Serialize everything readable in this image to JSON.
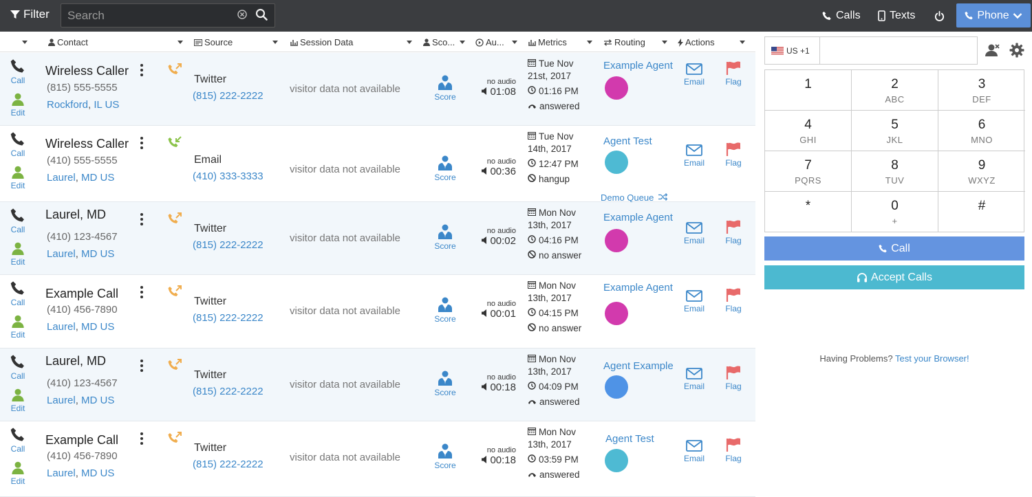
{
  "topbar": {
    "filter_label": "Filter",
    "search_placeholder": "Search",
    "calls_label": "Calls",
    "texts_label": "Texts",
    "phone_label": "Phone"
  },
  "columns": {
    "contact": "Contact",
    "source": "Source",
    "session": "Session Data",
    "score": "Sco...",
    "audio": "Au...",
    "metrics": "Metrics",
    "routing": "Routing",
    "actions": "Actions"
  },
  "labels": {
    "call": "Call",
    "edit": "Edit",
    "score": "Score",
    "no_audio": "no audio",
    "email": "Email",
    "flag": "Flag",
    "session_na": "visitor data not available"
  },
  "colors": {
    "topbar": "#3b3d40",
    "accent": "#5b8fd8",
    "link": "#3b87c9",
    "accept": "#4cb9d0"
  },
  "rows": [
    {
      "name": "Wireless Caller",
      "phone": "(815) 555-5555",
      "city": "Rockford",
      "region": "IL US",
      "call_dir": "incoming",
      "source": "Twitter",
      "source_number": "(815) 222-2222",
      "duration": "01:08",
      "date_line1": "Tue Nov",
      "date_line2": "21st, 2017",
      "time": "01:16 PM",
      "status": "answered",
      "status_icon": "phone-hangup-icon",
      "agent": "Example Agent",
      "agent_color": "#d23aad",
      "queue": ""
    },
    {
      "name": "Wireless Caller",
      "phone": "(410) 555-5555",
      "city": "Laurel",
      "region": "MD US",
      "call_dir": "outgoing",
      "source": "Email",
      "source_number": "(410) 333-3333",
      "duration": "00:36",
      "date_line1": "Tue Nov",
      "date_line2": "14th, 2017",
      "time": "12:47 PM",
      "status": "hangup",
      "status_icon": "ban-icon",
      "agent": "Agent Test",
      "agent_color": "#4ebad3",
      "queue": "Demo Queue"
    },
    {
      "name": "Laurel, MD",
      "phone": "(410) 123-4567",
      "city": "Laurel",
      "region": "MD US",
      "call_dir": "incoming",
      "source": "Twitter",
      "source_number": "(815) 222-2222",
      "duration": "00:02",
      "date_line1": "Mon Nov",
      "date_line2": "13th, 2017",
      "time": "04:16 PM",
      "status": "no answer",
      "status_icon": "ban-icon",
      "agent": "Example Agent",
      "agent_color": "#d23aad",
      "queue": ""
    },
    {
      "name": "Example Call",
      "phone": "(410) 456-7890",
      "city": "Laurel",
      "region": "MD US",
      "call_dir": "incoming",
      "source": "Twitter",
      "source_number": "(815) 222-2222",
      "duration": "00:01",
      "date_line1": "Mon Nov",
      "date_line2": "13th, 2017",
      "time": "04:15 PM",
      "status": "no answer",
      "status_icon": "ban-icon",
      "agent": "Example Agent",
      "agent_color": "#d23aad",
      "queue": ""
    },
    {
      "name": "Laurel, MD",
      "phone": "(410) 123-4567",
      "city": "Laurel",
      "region": "MD US",
      "call_dir": "incoming",
      "source": "Twitter",
      "source_number": "(815) 222-2222",
      "duration": "00:18",
      "date_line1": "Mon Nov",
      "date_line2": "13th, 2017",
      "time": "04:09 PM",
      "status": "answered",
      "status_icon": "phone-hangup-icon",
      "agent": "Agent Example",
      "agent_color": "#4f93e6",
      "queue": ""
    },
    {
      "name": "Example Call",
      "phone": "(410) 456-7890",
      "city": "Laurel",
      "region": "MD US",
      "call_dir": "incoming",
      "source": "Twitter",
      "source_number": "(815) 222-2222",
      "duration": "00:18",
      "date_line1": "Mon Nov",
      "date_line2": "13th, 2017",
      "time": "03:59 PM",
      "status": "answered",
      "status_icon": "phone-hangup-icon",
      "agent": "Agent Test",
      "agent_color": "#4ebad3",
      "queue": ""
    }
  ],
  "dialer": {
    "country_code": "US +1",
    "keys": [
      {
        "digit": "1",
        "letters": ""
      },
      {
        "digit": "2",
        "letters": "ABC"
      },
      {
        "digit": "3",
        "letters": "DEF"
      },
      {
        "digit": "4",
        "letters": "GHI"
      },
      {
        "digit": "5",
        "letters": "JKL"
      },
      {
        "digit": "6",
        "letters": "MNO"
      },
      {
        "digit": "7",
        "letters": "PQRS"
      },
      {
        "digit": "8",
        "letters": "TUV"
      },
      {
        "digit": "9",
        "letters": "WXYZ"
      },
      {
        "digit": "*",
        "letters": ""
      },
      {
        "digit": "0",
        "letters": "+"
      },
      {
        "digit": "#",
        "letters": ""
      }
    ],
    "call_label": "Call",
    "accept_label": "Accept Calls",
    "problems_text": "Having Problems?",
    "problems_link": "Test your Browser!"
  }
}
